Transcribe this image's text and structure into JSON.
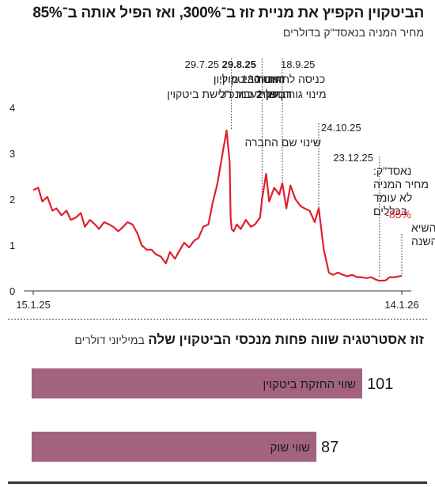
{
  "header": {
    "title": "הביטקוין הקפיץ את מניית זוז ב־300%, ואז הפיל אותה ב־85%",
    "subtitle": "מחיר המניה בנאסד\"ק בדולרים"
  },
  "colors": {
    "line": "#e0202c",
    "bar": "#a3637e",
    "text": "#1a1a1a",
    "highlight": "#e0202c"
  },
  "annotations": [
    {
      "date": "29.7.25",
      "lines": [
        "כניסה לתחום הביטקוין,",
        "מינוי גורדן פריד כמנכ\"ל"
      ]
    },
    {
      "date": "29.8.25",
      "lines": [
        "דוחות",
        "רבעון 2"
      ]
    },
    {
      "date": "18.9.25",
      "lines": [
        "גיוס 180 מיליון",
        "דולר עבור רכישת ביטקוין"
      ]
    },
    {
      "date": "24.10.25",
      "lines": [
        "שינוי שם החברה"
      ]
    },
    {
      "date": "23.12.25",
      "lines": [
        "נאסד\"ק:",
        "מחיר המניה",
        "לא עומד",
        "בכללים"
      ]
    },
    {
      "date": "",
      "highlight": "-85%",
      "lines": [
        "מהשיא",
        "של השנה"
      ]
    }
  ],
  "chart_data": [
    {
      "type": "line",
      "title": "הביטקוין הקפיץ את מניית זוז ב־300%, ואז הפיל אותה ב־85%",
      "ylabel": "מחיר המניה בנאסד\"ק בדולרים",
      "xlim": [
        "15.1.25",
        "14.1.26"
      ],
      "ylim": [
        0,
        4
      ],
      "yticks": [
        0,
        1,
        2,
        3,
        4
      ],
      "xtick_labels": [
        "15.1.25",
        "14.1.26"
      ],
      "grid": false,
      "series": [
        {
          "x": [
            "2025-01-15",
            "2025-01-20",
            "2025-01-24",
            "2025-01-29",
            "2025-02-03",
            "2025-02-07",
            "2025-02-12",
            "2025-02-17",
            "2025-02-21",
            "2025-02-26",
            "2025-03-03",
            "2025-03-07",
            "2025-03-12",
            "2025-03-17",
            "2025-03-21",
            "2025-03-26",
            "2025-03-31",
            "2025-04-04",
            "2025-04-09",
            "2025-04-14",
            "2025-04-18",
            "2025-04-23",
            "2025-04-28",
            "2025-05-02",
            "2025-05-07",
            "2025-05-12",
            "2025-05-16",
            "2025-05-21",
            "2025-05-26",
            "2025-05-30",
            "2025-06-04",
            "2025-06-09",
            "2025-06-13",
            "2025-06-18",
            "2025-06-23",
            "2025-06-27",
            "2025-07-02",
            "2025-07-07",
            "2025-07-11",
            "2025-07-16",
            "2025-07-21",
            "2025-07-25",
            "2025-07-28",
            "2025-07-29",
            "2025-07-30",
            "2025-08-01",
            "2025-08-04",
            "2025-08-08",
            "2025-08-13",
            "2025-08-18",
            "2025-08-22",
            "2025-08-27",
            "2025-08-29",
            "2025-09-02",
            "2025-09-05",
            "2025-09-10",
            "2025-09-15",
            "2025-09-18",
            "2025-09-22",
            "2025-09-26",
            "2025-10-01",
            "2025-10-06",
            "2025-10-10",
            "2025-10-15",
            "2025-10-20",
            "2025-10-24",
            "2025-10-29",
            "2025-11-03",
            "2025-11-07",
            "2025-11-12",
            "2025-11-17",
            "2025-11-21",
            "2025-11-26",
            "2025-12-01",
            "2025-12-05",
            "2025-12-10",
            "2025-12-15",
            "2025-12-19",
            "2025-12-23",
            "2025-12-29",
            "2026-01-02",
            "2026-01-07",
            "2026-01-14"
          ],
          "y": [
            2.2,
            2.25,
            1.95,
            2.05,
            1.75,
            1.8,
            1.65,
            1.75,
            1.55,
            1.6,
            1.7,
            1.4,
            1.55,
            1.45,
            1.35,
            1.5,
            1.45,
            1.4,
            1.3,
            1.4,
            1.5,
            1.45,
            1.25,
            1.0,
            0.9,
            0.9,
            0.8,
            0.75,
            0.6,
            0.85,
            0.7,
            0.9,
            1.05,
            0.95,
            1.1,
            1.15,
            1.4,
            1.45,
            1.9,
            2.35,
            3.0,
            3.5,
            2.8,
            1.6,
            1.35,
            1.3,
            1.45,
            1.35,
            1.55,
            1.4,
            1.45,
            1.6,
            2.0,
            2.55,
            1.95,
            2.25,
            2.1,
            2.35,
            1.8,
            2.3,
            2.0,
            1.85,
            1.8,
            1.75,
            1.5,
            1.8,
            0.9,
            0.4,
            0.35,
            0.4,
            0.35,
            0.32,
            0.35,
            0.3,
            0.3,
            0.28,
            0.3,
            0.25,
            0.22,
            0.23,
            0.3,
            0.3,
            0.33
          ]
        }
      ]
    },
    {
      "type": "bar",
      "title": "זוז אסטרטגיה שווה פחות מנכסי הביטקוין שלה",
      "unit": "במיליוני דולרים",
      "orientation": "horizontal",
      "categories": [
        "שווי החזקת ביטקוין",
        "שווי שוק"
      ],
      "values": [
        101,
        87
      ]
    }
  ],
  "section2": {
    "title": "זוז אסטרטגיה שווה פחות מנכסי הביטקוין שלה",
    "unit": "במיליוני דולרים"
  }
}
